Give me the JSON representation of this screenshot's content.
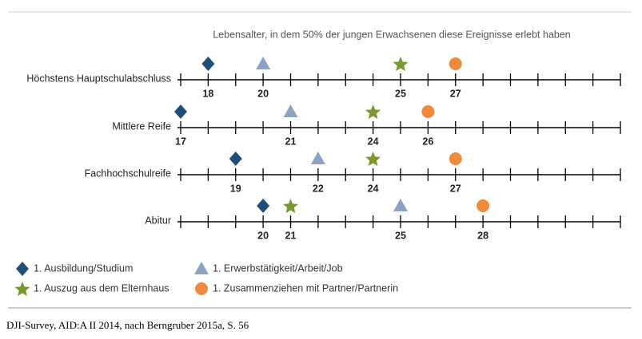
{
  "chart_data": {
    "type": "dot",
    "subtitle": "Lebensalter, in dem 50% der jungen Erwachsenen diese Ereignisse erlebt haben",
    "categories": [
      "Höchstens Hauptschulabschluss",
      "Mittlere Reife",
      "Fachhochschulreife",
      "Abitur"
    ],
    "xlim": [
      17,
      33
    ],
    "xticks": [
      17,
      18,
      19,
      20,
      21,
      22,
      23,
      24,
      25,
      26,
      27,
      28,
      29,
      30,
      31,
      32,
      33
    ],
    "series": [
      {
        "name": "1. Ausbildung/Studium",
        "marker": "diamond",
        "color": "#1f4e79",
        "values": [
          18,
          17,
          19,
          20
        ]
      },
      {
        "name": "1. Erwerbstätigkeit/Arbeit/Job",
        "marker": "triangle",
        "color": "#8aa2c4",
        "values": [
          20,
          21,
          22,
          25
        ]
      },
      {
        "name": "1. Auszug aus dem Elternhaus",
        "marker": "star",
        "color": "#7a9a2e",
        "values": [
          25,
          24,
          24,
          21
        ]
      },
      {
        "name": "1. Zusammenziehen mit Partner/Partnerin",
        "marker": "circle",
        "color": "#f08a3c",
        "values": [
          27,
          26,
          27,
          28
        ]
      }
    ],
    "source": "DJI-Survey, AID:A II 2014, nach Berngruber 2015a, S. 56"
  }
}
